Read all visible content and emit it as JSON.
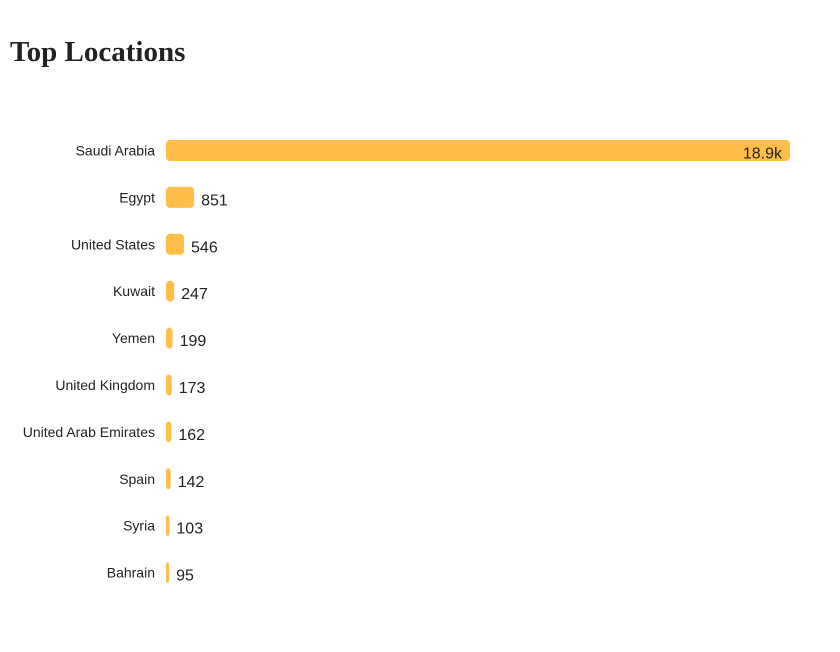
{
  "title": "Top Locations",
  "colors": {
    "bar": "#FFBE4A",
    "text": "#222222",
    "background": "#FFFFFF"
  },
  "chart_data": {
    "type": "bar",
    "orientation": "horizontal",
    "title": "Top Locations",
    "xlabel": "",
    "ylabel": "",
    "grid": false,
    "legend": "none",
    "categories": [
      "Saudi Arabia",
      "Egypt",
      "United States",
      "Kuwait",
      "Yemen",
      "United Kingdom",
      "United Arab Emirates",
      "Spain",
      "Syria",
      "Bahrain"
    ],
    "values": [
      18900,
      851,
      546,
      247,
      199,
      173,
      162,
      142,
      103,
      95
    ],
    "value_labels": [
      "18.9k",
      "851",
      "546",
      "247",
      "199",
      "173",
      "162",
      "142",
      "103",
      "95"
    ],
    "xlim": [
      0,
      18900
    ]
  }
}
